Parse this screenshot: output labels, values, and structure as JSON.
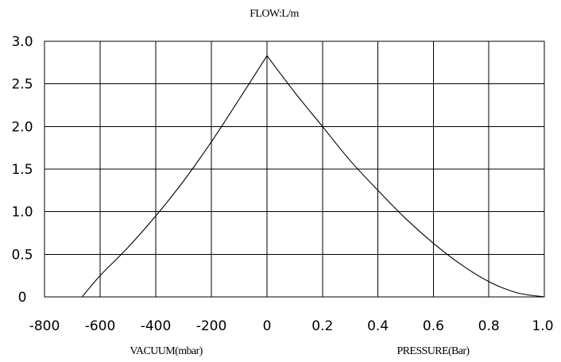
{
  "chart_data": {
    "type": "line",
    "title": "FLOW:L/m",
    "ylabel": "",
    "ylim": [
      0,
      3.0
    ],
    "y_ticks": [
      "3.0",
      "2.5",
      "2.0",
      "1.5",
      "1.0",
      "0.5",
      "0"
    ],
    "x_ticks_vacuum": [
      "-800",
      "-600",
      "-400",
      "-200",
      "0"
    ],
    "x_ticks_pressure": [
      "0.2",
      "0.4",
      "0.6",
      "0.8",
      "1.0"
    ],
    "xlabel_vacuum": "VACUUM(mbar)",
    "xlabel_pressure": "PRESSURE(Bar)",
    "grid": true,
    "series": [
      {
        "segment": "vacuum",
        "x_unit": "mbar",
        "x": [
          -665,
          -600,
          -500,
          -400,
          -300,
          -200,
          -100,
          0
        ],
        "y": [
          0,
          0.25,
          0.58,
          0.95,
          1.36,
          1.82,
          2.32,
          2.83
        ]
      },
      {
        "segment": "pressure",
        "x_unit": "Bar",
        "x": [
          0,
          0.1,
          0.2,
          0.3,
          0.4,
          0.5,
          0.6,
          0.7,
          0.8,
          0.9,
          1.0
        ],
        "y": [
          2.83,
          2.4,
          2.0,
          1.6,
          1.25,
          0.92,
          0.63,
          0.38,
          0.18,
          0.05,
          0
        ]
      }
    ]
  }
}
